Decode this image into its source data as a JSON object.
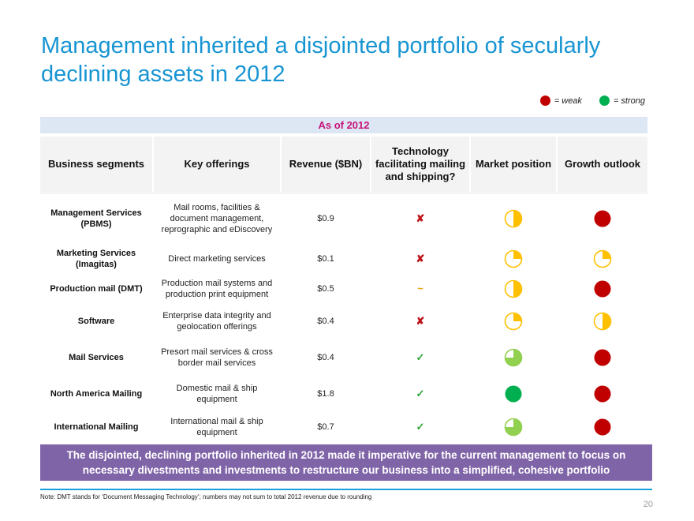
{
  "title": "Management inherited a disjointed portfolio of secularly declining assets in 2012",
  "legend": {
    "weak_color": "#c00000",
    "weak_label": "= weak",
    "strong_color": "#00b050",
    "strong_label": "= strong"
  },
  "as_of": "As of 2012",
  "headers": {
    "segments": "Business segments",
    "offerings": "Key offerings",
    "revenue": "Revenue ($BN)",
    "technology": "Technology facilitating mailing and shipping?",
    "market": "Market position",
    "growth": "Growth outlook"
  },
  "colors": {
    "weak": "#c00000",
    "moderate": "#ffc000",
    "good": "#92d050",
    "strong": "#00b050"
  },
  "rows": [
    {
      "segment": "Management Services (PBMS)",
      "offerings": "Mail rooms, facilities & document management, reprographic and eDiscovery",
      "revenue": "$0.9",
      "tech": "✘",
      "tech_type": "x",
      "market_level": 0.5,
      "market_color": "#ffc000",
      "growth_level": 1,
      "growth_color": "#c00000"
    },
    {
      "segment": "Marketing Services (Imagitas)",
      "offerings": "Direct marketing services",
      "revenue": "$0.1",
      "tech": "✘",
      "tech_type": "x",
      "market_level": 0.25,
      "market_color": "#ffc000",
      "growth_level": 0.25,
      "growth_color": "#ffc000"
    },
    {
      "segment": "Production mail (DMT)",
      "offerings": "Production mail systems and production print equipment",
      "revenue": "$0.5",
      "tech": "~",
      "tech_type": "tilde",
      "market_level": 0.5,
      "market_color": "#ffc000",
      "growth_level": 1,
      "growth_color": "#c00000"
    },
    {
      "segment": "Software",
      "offerings": "Enterprise data integrity and geolocation offerings",
      "revenue": "$0.4",
      "tech": "✘",
      "tech_type": "x",
      "market_level": 0.25,
      "market_color": "#ffc000",
      "growth_level": 0.5,
      "growth_color": "#ffc000"
    },
    {
      "segment": "Mail Services",
      "offerings": "Presort mail services & cross border mail services",
      "revenue": "$0.4",
      "tech": "✓",
      "tech_type": "check",
      "market_level": 0.75,
      "market_color": "#92d050",
      "growth_level": 1,
      "growth_color": "#c00000"
    },
    {
      "segment": "North America Mailing",
      "offerings": "Domestic mail & ship equipment",
      "revenue": "$1.8",
      "tech": "✓",
      "tech_type": "check",
      "market_level": 1,
      "market_color": "#00b050",
      "growth_level": 1,
      "growth_color": "#c00000"
    },
    {
      "segment": "International Mailing",
      "offerings": "International mail & ship equipment",
      "revenue": "$0.7",
      "tech": "✓",
      "tech_type": "check",
      "market_level": 0.75,
      "market_color": "#92d050",
      "growth_level": 1,
      "growth_color": "#c00000"
    }
  ],
  "banner": "The disjointed, declining portfolio inherited in 2012 made it imperative for the current management to focus on necessary divestments and investments to restructure our business into a simplified, cohesive portfolio",
  "note": "Note: DMT stands for ‘Document Messaging Technology’; numbers may not sum to total 2012 revenue due to rounding",
  "page_number": "20"
}
